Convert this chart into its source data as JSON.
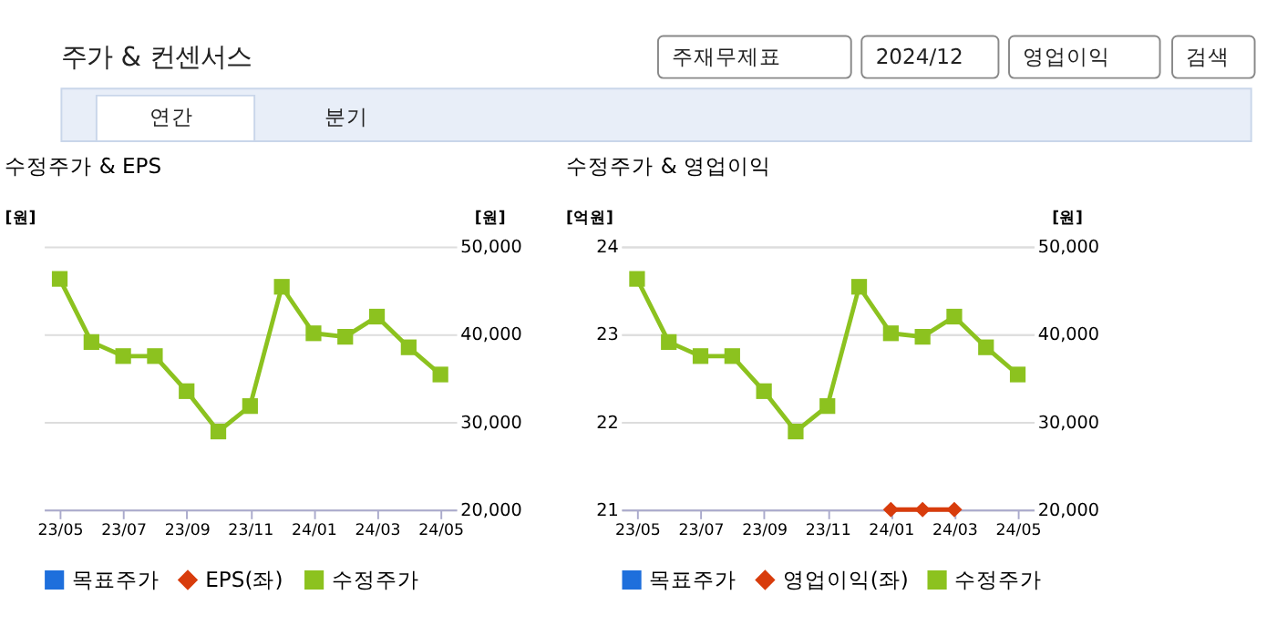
{
  "chart_data": [
    {
      "type": "other",
      "title": "주가 & 컨센서스",
      "annotations": [
        "주재무제표",
        "2024/12",
        "영업이익",
        "검색",
        "연간",
        "분기"
      ]
    },
    {
      "type": "line",
      "title": "수정주가 & EPS",
      "ylabel": "[원]",
      "y2label": "[원]",
      "categories": [
        "23/05",
        null,
        "23/07",
        null,
        "23/09",
        null,
        "23/11",
        null,
        "24/01",
        null,
        "24/03",
        null,
        "24/05"
      ],
      "series": [
        {
          "name": "목표주가",
          "type": "scatter",
          "marker": "square",
          "color": "#1e6fdc",
          "values": [
            null,
            null,
            null,
            null,
            null,
            null,
            null,
            null,
            null,
            null,
            null,
            null,
            null
          ]
        },
        {
          "name": "EPS(좌)",
          "type": "line",
          "marker": "diamond",
          "color": "#d83c0c",
          "values": [
            null,
            null,
            null,
            null,
            null,
            null,
            null,
            null,
            null,
            null,
            null,
            null,
            null
          ]
        },
        {
          "name": "수정주가",
          "type": "line",
          "marker": "square",
          "color": "#8cc21f",
          "axis": "y2",
          "values": [
            46300,
            39100,
            37500,
            37500,
            33500,
            28900,
            31800,
            45400,
            40100,
            39700,
            42000,
            38500,
            35400
          ]
        }
      ],
      "y2lim": [
        20000,
        50000
      ],
      "y2ticks": [
        {
          "value": 20000,
          "label": "20,000"
        },
        {
          "value": 30000,
          "label": "30,000"
        },
        {
          "value": 40000,
          "label": "40,000"
        },
        {
          "value": 50000,
          "label": "50,000"
        }
      ],
      "grid": "y",
      "legend": "bottom",
      "line_style": "solid"
    },
    {
      "type": "line",
      "title": "수정주가 & 영업이익",
      "ylabel": "[억원]",
      "y2label": "[원]",
      "categories": [
        "23/05",
        null,
        "23/07",
        null,
        "23/09",
        null,
        "23/11",
        null,
        "24/01",
        null,
        "24/03",
        null,
        "24/05"
      ],
      "series": [
        {
          "name": "목표주가",
          "type": "scatter",
          "marker": "square",
          "color": "#1e6fdc",
          "values": [
            null,
            null,
            null,
            null,
            null,
            null,
            null,
            null,
            null,
            null,
            null,
            null,
            null
          ]
        },
        {
          "name": "영업이익(좌)",
          "type": "line",
          "marker": "diamond",
          "color": "#d83c0c",
          "values": [
            null,
            null,
            null,
            null,
            null,
            null,
            null,
            null,
            21,
            21,
            21,
            null,
            null
          ]
        },
        {
          "name": "수정주가",
          "type": "line",
          "marker": "square",
          "color": "#8cc21f",
          "axis": "y2",
          "values": [
            46300,
            39100,
            37500,
            37500,
            33500,
            28900,
            31800,
            45400,
            40100,
            39700,
            42000,
            38500,
            35400
          ]
        }
      ],
      "ylim": [
        21,
        24
      ],
      "yticks": [
        21,
        22,
        23,
        24
      ],
      "y2lim": [
        20000,
        50000
      ],
      "y2ticks": [
        {
          "value": 20000,
          "label": "20,000"
        },
        {
          "value": 30000,
          "label": "30,000"
        },
        {
          "value": 40000,
          "label": "40,000"
        },
        {
          "value": 50000,
          "label": "50,000"
        }
      ],
      "grid": "y",
      "legend": "bottom",
      "line_style": "solid"
    }
  ]
}
